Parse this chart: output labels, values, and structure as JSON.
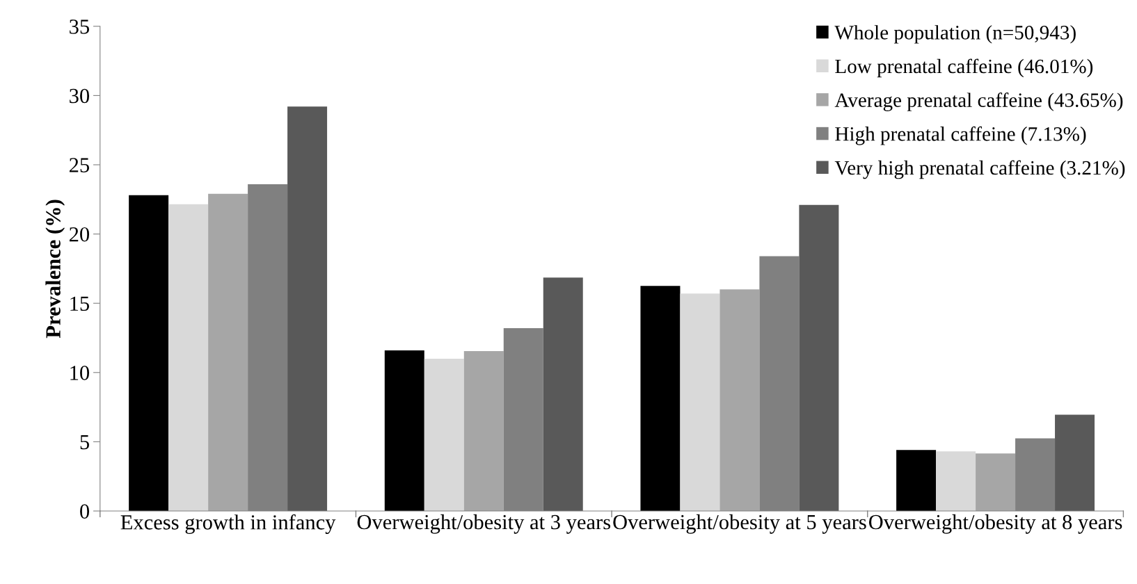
{
  "chart_data": {
    "type": "bar",
    "ylabel": "Prevalence (%)",
    "categories": [
      "Excess growth in infancy",
      "Overweight/obesity at 3 years",
      "Overweight/obesity at 5 years",
      "Overweight/obesity at 8 years"
    ],
    "series": [
      {
        "name": "Whole population (n=50,943)",
        "color": "#000000",
        "values": [
          22.8,
          11.6,
          16.25,
          4.4
        ]
      },
      {
        "name": "Low prenatal caffeine (46.01%)",
        "color": "#d9d9d9",
        "values": [
          22.15,
          11.0,
          15.7,
          4.3
        ]
      },
      {
        "name": "Average prenatal caffeine (43.65%)",
        "color": "#a6a6a6",
        "values": [
          22.9,
          11.55,
          16.0,
          4.15
        ]
      },
      {
        "name": "High prenatal caffeine (7.13%)",
        "color": "#808080",
        "values": [
          23.6,
          13.2,
          18.4,
          5.25
        ]
      },
      {
        "name": "Very high prenatal caffeine (3.21%)",
        "color": "#595959",
        "values": [
          29.2,
          16.85,
          22.1,
          6.95
        ]
      }
    ],
    "ylim": [
      0,
      35
    ],
    "yticks": [
      0,
      5,
      10,
      15,
      20,
      25,
      30,
      35
    ],
    "grid": false,
    "legend": "top right"
  }
}
